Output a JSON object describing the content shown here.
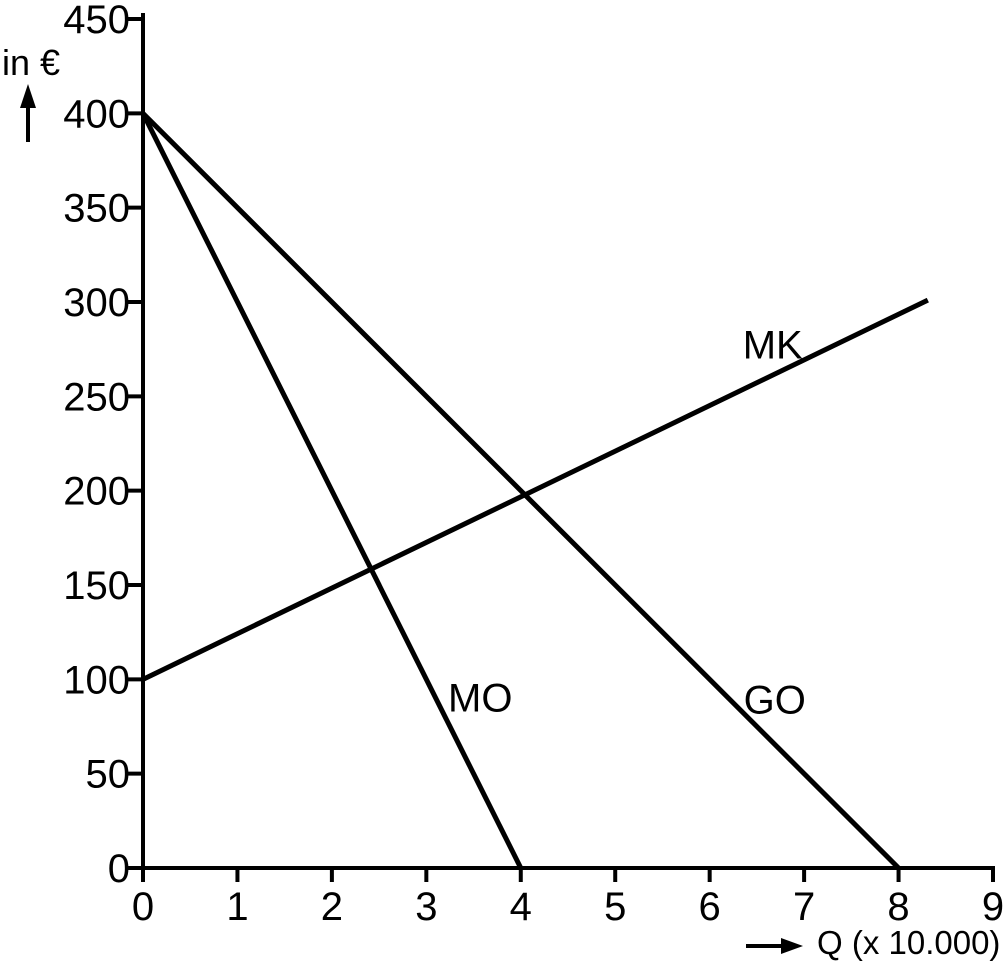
{
  "figure": {
    "background": "#ffffff",
    "line_color": "#000000"
  },
  "chart_data": {
    "type": "line",
    "title": "",
    "xlabel": "Q (x 10.000)",
    "ylabel": "in €",
    "xlim": [
      0,
      9
    ],
    "ylim": [
      0,
      450
    ],
    "x_ticks": [
      0,
      1,
      2,
      3,
      4,
      5,
      6,
      7,
      8,
      9
    ],
    "y_ticks": [
      0,
      50,
      100,
      150,
      200,
      250,
      300,
      350,
      400,
      450
    ],
    "grid": false,
    "legend_position": "inline-labels",
    "series": [
      {
        "name": "MO",
        "label": "MO",
        "points": [
          [
            0,
            400
          ],
          [
            4,
            0
          ]
        ],
        "label_at": [
          3.23,
          83
        ]
      },
      {
        "name": "GO",
        "label": "GO",
        "points": [
          [
            0,
            400
          ],
          [
            8,
            0
          ]
        ],
        "label_at": [
          6.36,
          82
        ]
      },
      {
        "name": "MK",
        "label": "MK",
        "points": [
          [
            0,
            100
          ],
          [
            8.31,
            301
          ]
        ],
        "label_at": [
          6.35,
          270
        ]
      }
    ]
  }
}
